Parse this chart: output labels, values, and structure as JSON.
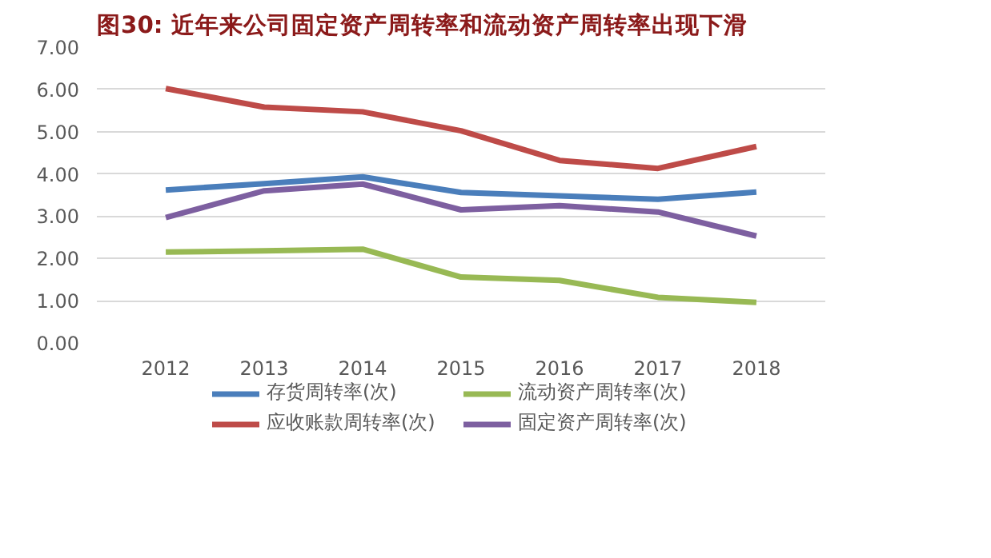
{
  "chart_data": {
    "type": "line",
    "title": "图30:    近年来公司固定资产周转率和流动资产周转率出现下滑",
    "categories": [
      "2012",
      "2013",
      "2014",
      "2015",
      "2016",
      "2017",
      "2018"
    ],
    "series": [
      {
        "name": "存货周转率(次)",
        "color": "#4a7ebb",
        "values": [
          3.62,
          3.77,
          3.93,
          3.56,
          3.48,
          3.4,
          3.57
        ]
      },
      {
        "name": "应收账款周转率(次)",
        "color": "#be4b48",
        "values": [
          6.02,
          5.58,
          5.47,
          5.02,
          4.32,
          4.13,
          4.65
        ]
      },
      {
        "name": "流动资产周转率(次)",
        "color": "#98b954",
        "values": [
          2.15,
          2.18,
          2.22,
          1.56,
          1.48,
          1.08,
          0.96
        ]
      },
      {
        "name": "固定资产周转率(次)",
        "color": "#7d5fa0",
        "values": [
          2.97,
          3.6,
          3.76,
          3.15,
          3.25,
          3.1,
          2.53
        ]
      }
    ],
    "ylim": [
      0,
      7
    ],
    "yticks": [
      {
        "value": 0,
        "label": "0.00"
      },
      {
        "value": 1,
        "label": "1.00"
      },
      {
        "value": 2,
        "label": "2.00"
      },
      {
        "value": 3,
        "label": "3.00"
      },
      {
        "value": 4,
        "label": "4.00"
      },
      {
        "value": 5,
        "label": "5.00"
      },
      {
        "value": 6,
        "label": "6.00"
      },
      {
        "value": 7,
        "label": "7.00"
      }
    ],
    "grid": "y",
    "legend": "bottom",
    "marker": "none",
    "line_style": "solid"
  }
}
